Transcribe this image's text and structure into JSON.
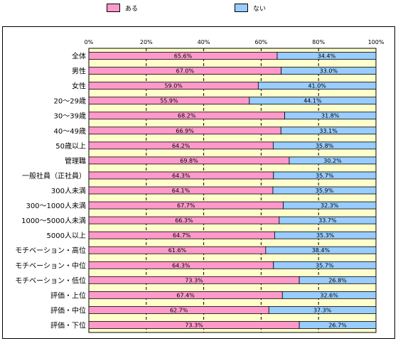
{
  "legend": {
    "aru": {
      "label": "ある",
      "color": "#ff99cc"
    },
    "nai": {
      "label": "ない",
      "color": "#99ccff"
    }
  },
  "plot_background": "#ffffcc",
  "chart_data": {
    "type": "bar",
    "orientation": "horizontal",
    "stacked": true,
    "percent": true,
    "xlim": [
      0,
      100
    ],
    "xticks": [
      "0%",
      "20%",
      "40%",
      "60%",
      "80%",
      "100%"
    ],
    "categories": [
      "全体",
      "男性",
      "女性",
      "20～29歳",
      "30～39歳",
      "40～49歳",
      "50歳以上",
      "管理職",
      "一般社員（正社員）",
      "300人未満",
      "300～1000人未満",
      "1000～5000人未満",
      "5000人以上",
      "モチベーション・高位",
      "モチベーション・中位",
      "モチベーション・低位",
      "評価・上位",
      "評価・中位",
      "評価・下位"
    ],
    "series": [
      {
        "name": "ある",
        "values": [
          65.6,
          67.0,
          59.0,
          55.9,
          68.2,
          66.9,
          64.2,
          69.8,
          64.3,
          64.1,
          67.7,
          66.3,
          64.7,
          61.6,
          64.3,
          73.3,
          67.4,
          62.7,
          73.3
        ],
        "labels": [
          "65.6%",
          "67.0%",
          "59.0%",
          "55.9%",
          "68.2%",
          "66.9%",
          "64.2%",
          "69.8%",
          "64.3%",
          "64.1%",
          "67.7%",
          "66.3%",
          "64.7%",
          "61.6%",
          "64.3%",
          "73.3%",
          "67.4%",
          "62.7%",
          "73.3%"
        ]
      },
      {
        "name": "ない",
        "values": [
          34.4,
          33.0,
          41.0,
          44.1,
          31.8,
          33.1,
          35.8,
          30.2,
          35.7,
          35.9,
          32.3,
          33.7,
          35.3,
          38.4,
          35.7,
          26.8,
          32.6,
          37.3,
          26.7
        ],
        "labels": [
          "34.4%",
          "33.0%",
          "41.0%",
          "44.1%",
          "31.8%",
          "33.1%",
          "35.8%",
          "30.2%",
          "35.7%",
          "35.9%",
          "32.3%",
          "33.7%",
          "35.3%",
          "38.4%",
          "35.7%",
          "26.8%",
          "32.6%",
          "37.3%",
          "26.7%"
        ]
      }
    ],
    "grid": true,
    "legend_position": "top"
  }
}
